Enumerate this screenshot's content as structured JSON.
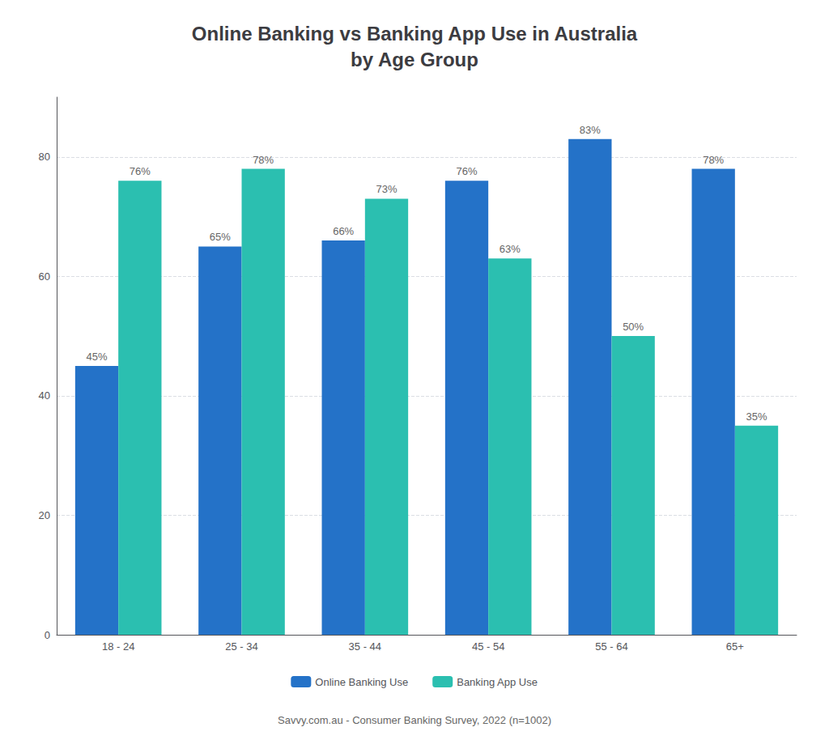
{
  "chart_data": {
    "type": "bar",
    "title": "Online Banking vs Banking App Use in Australia\nby Age Group",
    "categories": [
      "18 - 24",
      "25 - 34",
      "35 - 44",
      "45 - 54",
      "55 - 64",
      "65+"
    ],
    "series": [
      {
        "name": "Online Banking Use",
        "color": "#2472C8",
        "values": [
          45,
          65,
          66,
          76,
          83,
          78
        ],
        "value_labels": [
          "45%",
          "65%",
          "66%",
          "76%",
          "83%",
          "78%"
        ]
      },
      {
        "name": "Banking App Use",
        "color": "#2BBFB0",
        "values": [
          76,
          78,
          73,
          63,
          50,
          35
        ],
        "value_labels": [
          "76%",
          "78%",
          "73%",
          "63%",
          "50%",
          "35%"
        ]
      }
    ],
    "ylim": [
      0,
      90
    ],
    "yticks": [
      0,
      20,
      40,
      60,
      80
    ],
    "grid": true,
    "legend": "bottom",
    "data_labels": true,
    "annotations": [
      "Savvy.com.au - Consumer Banking Survey, 2022 (n=1002)"
    ]
  }
}
